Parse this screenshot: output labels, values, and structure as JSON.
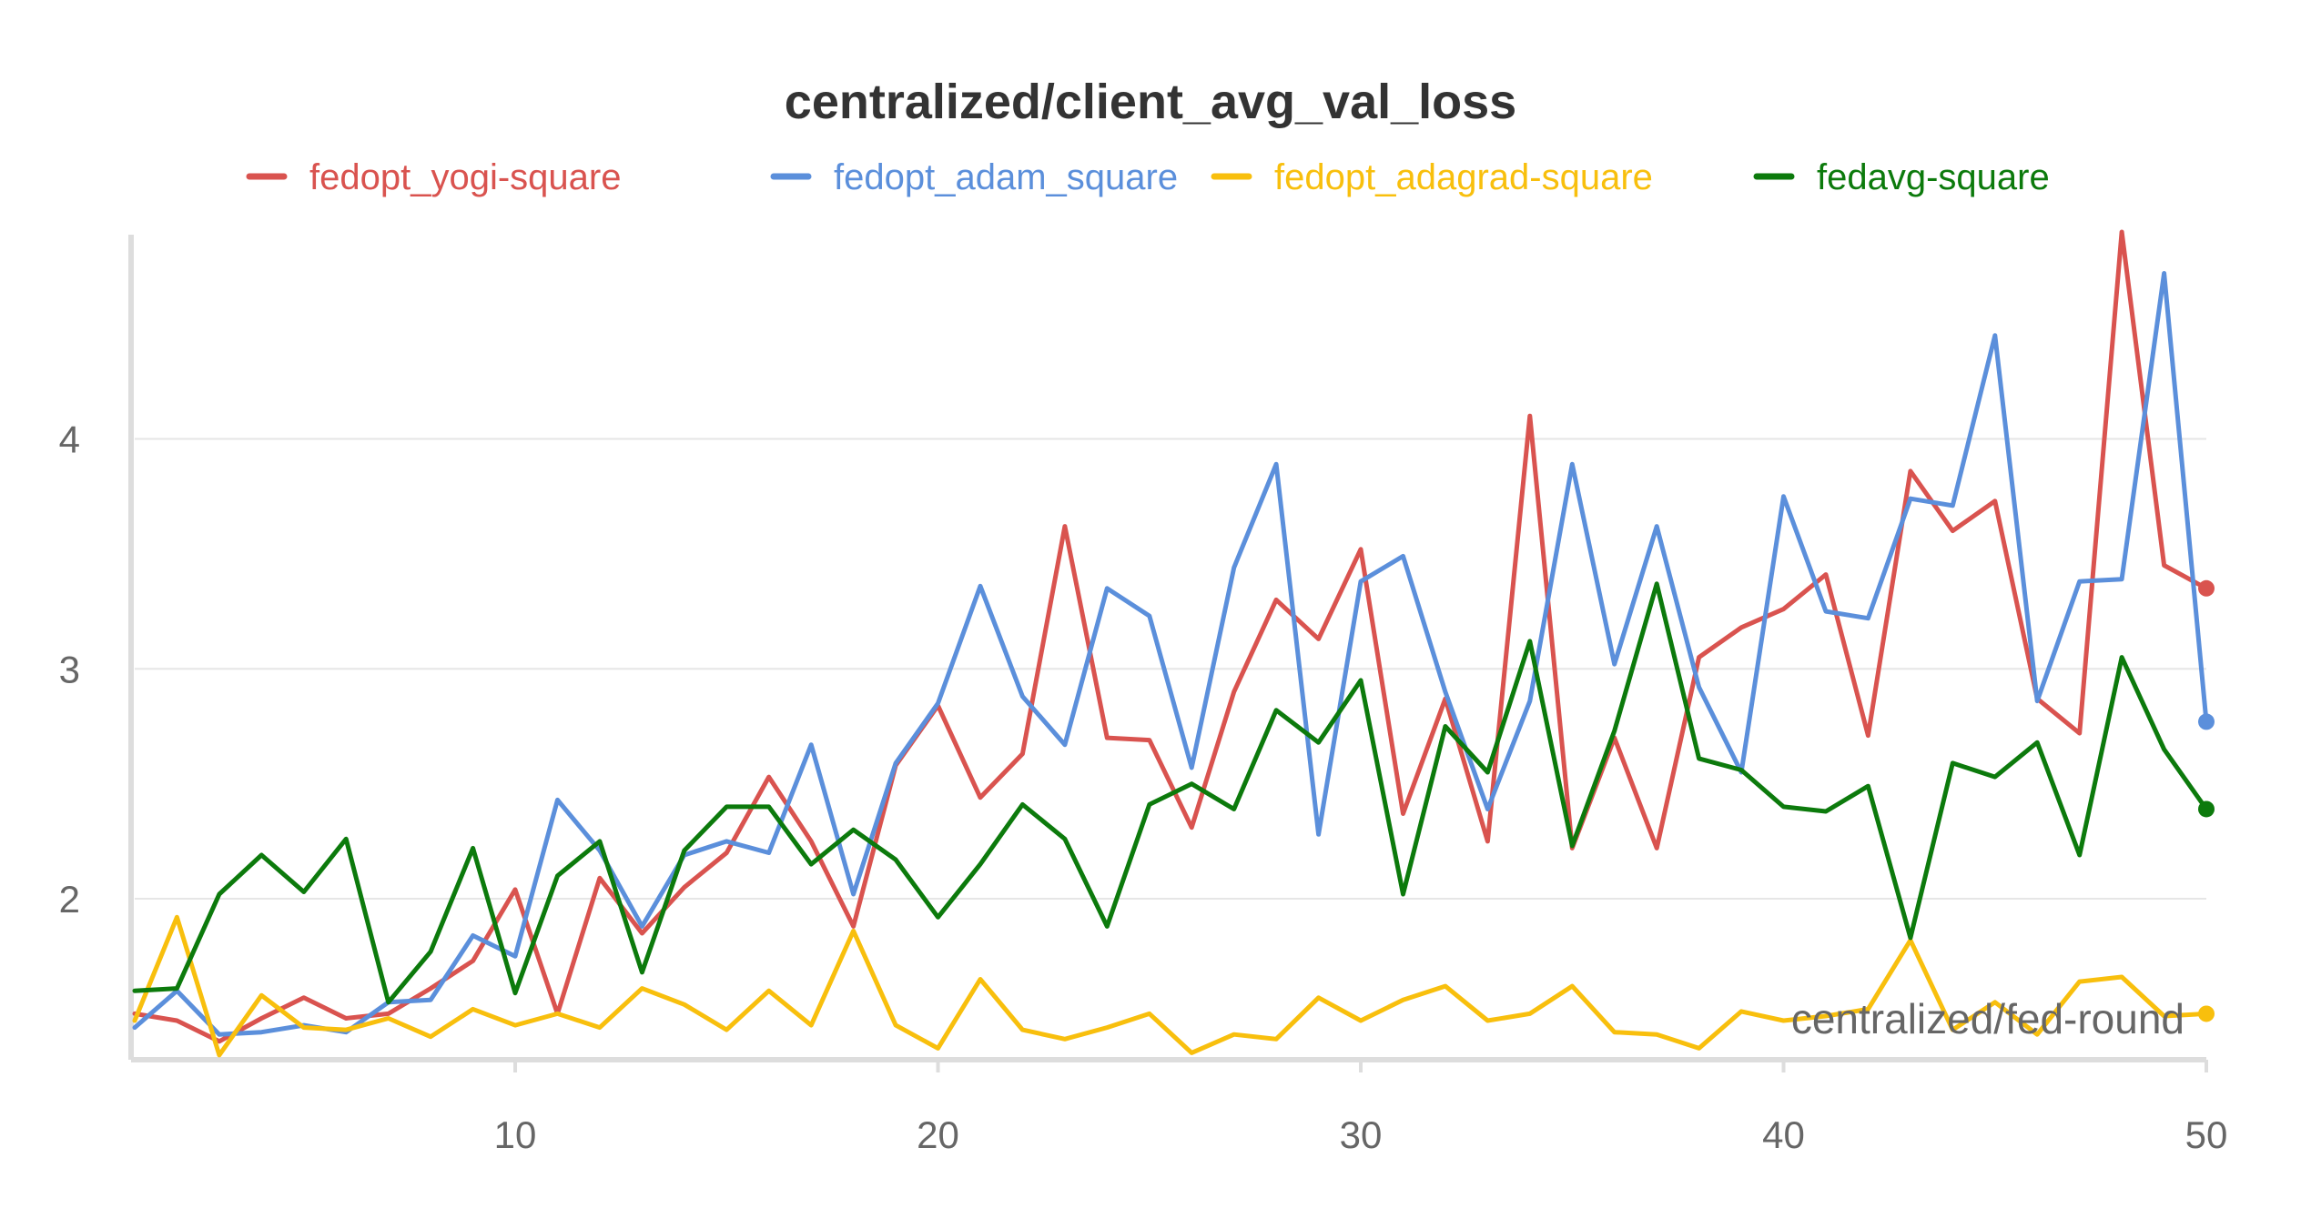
{
  "chart_data": {
    "type": "line",
    "title": "centralized/client_avg_val_loss",
    "xlabel": "centralized/fed-round",
    "ylabel": "",
    "xlim": [
      1,
      50
    ],
    "ylim": [
      1.3,
      4.9
    ],
    "xticks": [
      10,
      20,
      30,
      40,
      50
    ],
    "yticks": [
      2,
      3,
      4
    ],
    "grid": true,
    "legend_position": "top",
    "x": [
      1,
      2,
      3,
      4,
      5,
      6,
      7,
      8,
      9,
      10,
      11,
      12,
      13,
      14,
      15,
      16,
      17,
      18,
      19,
      20,
      21,
      22,
      23,
      24,
      25,
      26,
      27,
      28,
      29,
      30,
      31,
      32,
      33,
      34,
      35,
      36,
      37,
      38,
      39,
      40,
      41,
      42,
      43,
      44,
      45,
      46,
      47,
      48,
      49,
      50
    ],
    "series": [
      {
        "name": "fedopt_yogi-square",
        "color": "#d9534f",
        "values": [
          1.5,
          1.47,
          1.38,
          1.48,
          1.57,
          1.48,
          1.5,
          1.61,
          1.73,
          2.04,
          1.5,
          2.09,
          1.85,
          2.05,
          2.2,
          2.53,
          2.25,
          1.88,
          2.58,
          2.84,
          2.44,
          2.63,
          3.62,
          2.7,
          2.69,
          2.31,
          2.9,
          3.3,
          3.13,
          3.52,
          2.37,
          2.87,
          2.25,
          4.1,
          2.22,
          2.7,
          2.22,
          3.05,
          3.18,
          3.26,
          3.41,
          2.71,
          3.86,
          3.6,
          3.73,
          2.87,
          2.72,
          4.9,
          3.45,
          3.35
        ]
      },
      {
        "name": "fedopt_adam_square",
        "color": "#5b8fdb",
        "values": [
          1.44,
          1.6,
          1.41,
          1.42,
          1.45,
          1.42,
          1.55,
          1.56,
          1.84,
          1.75,
          2.43,
          2.21,
          1.88,
          2.19,
          2.25,
          2.2,
          2.67,
          2.02,
          2.59,
          2.85,
          3.36,
          2.88,
          2.67,
          3.35,
          3.23,
          2.57,
          3.44,
          3.89,
          2.28,
          3.38,
          3.49,
          2.9,
          2.39,
          2.86,
          3.89,
          3.02,
          3.62,
          2.92,
          2.55,
          3.75,
          3.25,
          3.22,
          3.74,
          3.71,
          4.45,
          2.86,
          3.38,
          3.39,
          4.72,
          2.77
        ]
      },
      {
        "name": "fedopt_adagrad-square",
        "color": "#f8bf0d",
        "values": [
          1.47,
          1.92,
          1.32,
          1.58,
          1.44,
          1.43,
          1.48,
          1.4,
          1.52,
          1.45,
          1.5,
          1.44,
          1.61,
          1.54,
          1.43,
          1.6,
          1.45,
          1.86,
          1.45,
          1.35,
          1.65,
          1.43,
          1.39,
          1.44,
          1.5,
          1.33,
          1.41,
          1.39,
          1.57,
          1.47,
          1.56,
          1.62,
          1.47,
          1.5,
          1.62,
          1.42,
          1.41,
          1.35,
          1.51,
          1.47,
          1.49,
          1.52,
          1.82,
          1.43,
          1.55,
          1.41,
          1.64,
          1.66,
          1.49,
          1.5
        ]
      },
      {
        "name": "fedavg-square",
        "color": "#0c7a0c",
        "values": [
          1.6,
          1.61,
          2.02,
          2.19,
          2.03,
          2.26,
          1.55,
          1.77,
          2.22,
          1.59,
          2.1,
          2.25,
          1.68,
          2.21,
          2.4,
          2.4,
          2.15,
          2.3,
          2.17,
          1.92,
          2.15,
          2.41,
          2.26,
          1.88,
          2.41,
          2.5,
          2.39,
          2.82,
          2.68,
          2.95,
          2.02,
          2.75,
          2.55,
          3.12,
          2.23,
          2.73,
          3.37,
          2.61,
          2.56,
          2.4,
          2.38,
          2.49,
          1.83,
          2.59,
          2.53,
          2.68,
          2.19,
          3.05,
          2.65,
          2.39
        ]
      }
    ]
  }
}
